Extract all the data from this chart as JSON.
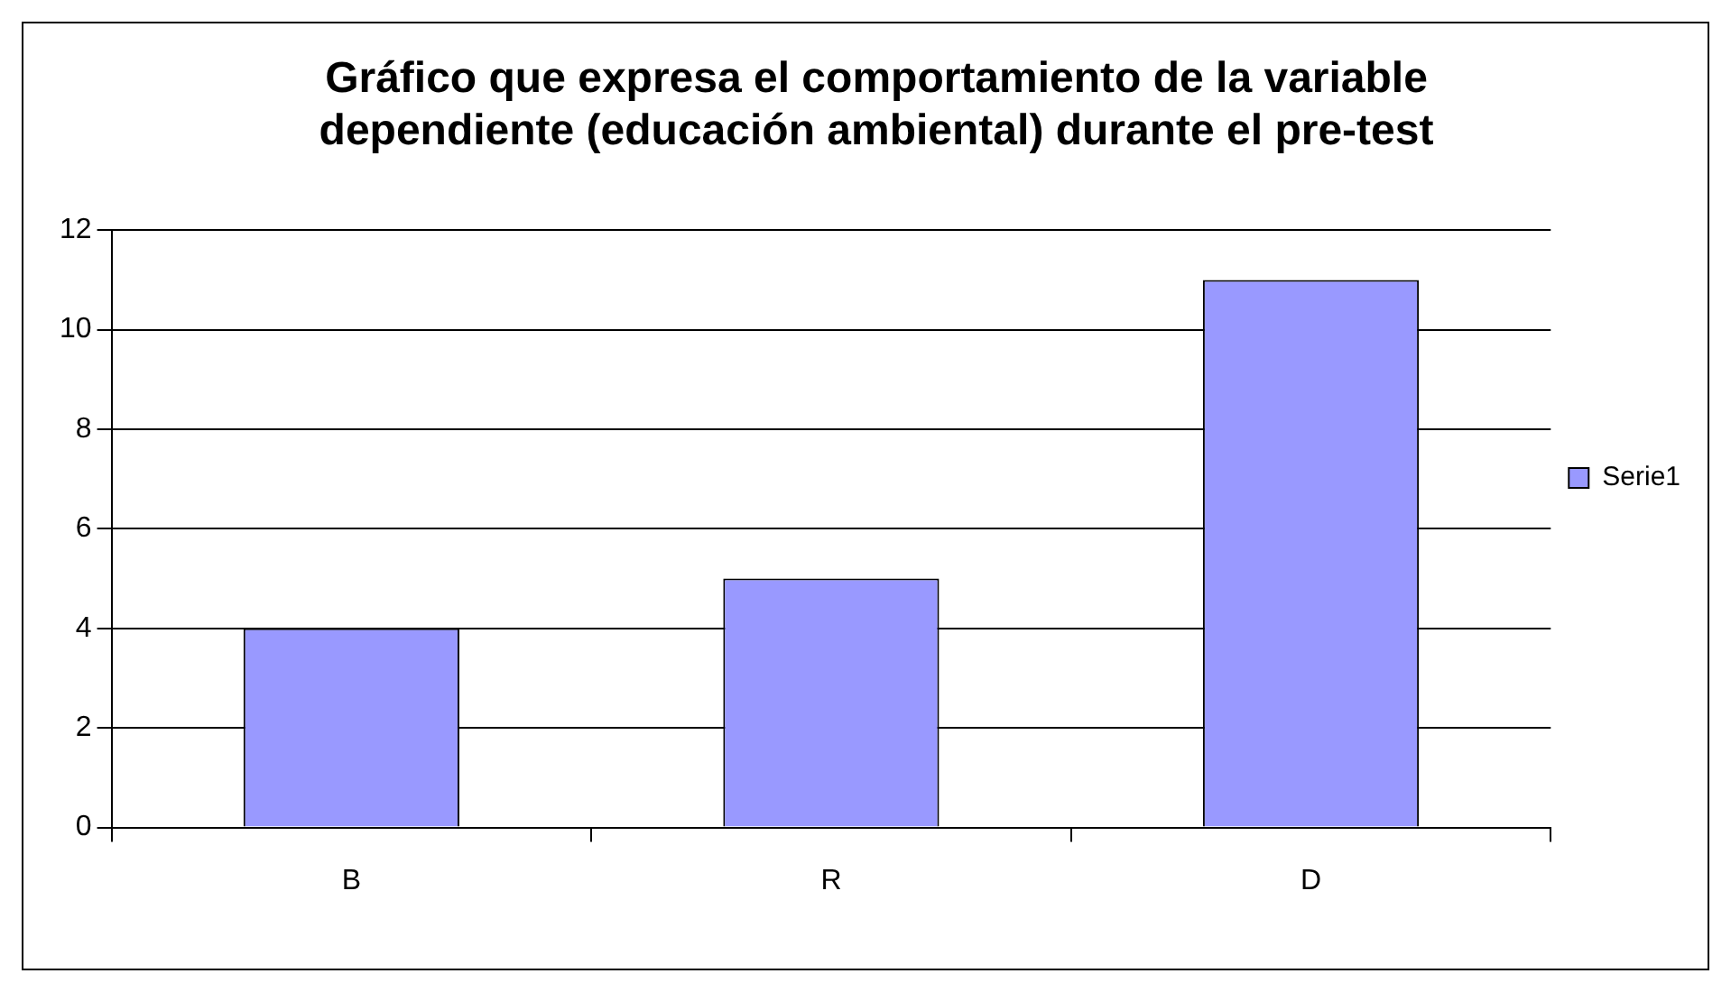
{
  "chart_data": {
    "type": "bar",
    "title": "Gráfico que expresa el comportamiento de la variable dependiente (educación ambiental) durante el pre-test",
    "categories": [
      "B",
      "R",
      "D"
    ],
    "series": [
      {
        "name": "Serie1",
        "color": "#9999ff",
        "values": [
          4,
          5,
          11
        ]
      }
    ],
    "ylim": [
      0,
      12
    ],
    "yticks": [
      0,
      2,
      4,
      6,
      8,
      10,
      12
    ],
    "grid": "y",
    "legend": "right"
  }
}
